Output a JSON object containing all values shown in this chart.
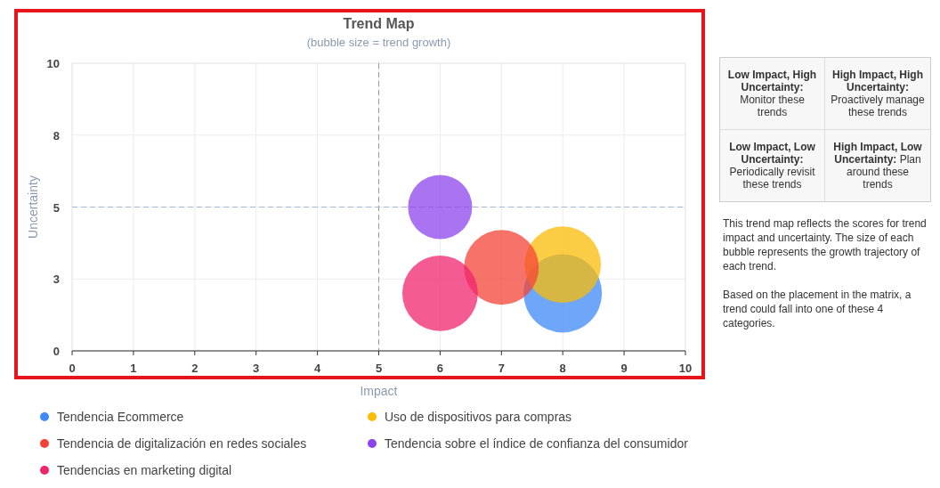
{
  "chart_data": {
    "type": "bubble",
    "title": "Trend Map",
    "subtitle": "(bubble size = trend growth)",
    "xlabel": "Impact",
    "ylabel": "Uncertainty",
    "xlim": [
      0,
      10
    ],
    "xticks": [
      0,
      1,
      2,
      3,
      4,
      5,
      6,
      7,
      8,
      9,
      10
    ],
    "ylim": [
      0,
      10
    ],
    "yticks": [
      0,
      {
        "value": 2.5,
        "label": "3"
      },
      5,
      {
        "value": 7.5,
        "label": "8"
      },
      10
    ],
    "grid": true,
    "legend": "bottom",
    "ref_lines": [
      {
        "axis": "x",
        "value": 5,
        "line_style": "dashed"
      },
      {
        "axis": "y",
        "value": 5,
        "line_style": "dashed"
      }
    ],
    "series": [
      {
        "name": "Tendencia Ecommerce",
        "color": "#3d8af7",
        "x": [
          8
        ],
        "values": [
          2
        ],
        "sizes": [
          1
        ]
      },
      {
        "name": "Uso de dispositivos para compras",
        "color": "#fbbc05",
        "x": [
          8
        ],
        "values": [
          3
        ],
        "sizes": [
          0.95
        ]
      },
      {
        "name": "Tendencia de digitalización en redes sociales",
        "color": "#f44336",
        "x": [
          7
        ],
        "values": [
          2.9
        ],
        "sizes": [
          0.91
        ]
      },
      {
        "name": "Tendencia sobre el índice de confianza del consumidor",
        "color": "#8e44ec",
        "x": [
          6
        ],
        "values": [
          5
        ],
        "sizes": [
          0.67
        ]
      },
      {
        "name": "Tendencias en marketing digital",
        "color": "#f0246e",
        "x": [
          6
        ],
        "values": [
          2
        ],
        "sizes": [
          0.93
        ]
      }
    ],
    "annotations": [
      "Low Impact, High Uncertainty: Monitor these trends",
      "High Impact, High Uncertainty: Proactively manage these trends",
      "Low Impact, Low Uncertainty: Periodically revisit these trends",
      "High Impact, Low Uncertainty: Plan around these trends",
      "This trend map reflects the scores for trend impact and uncertainty. The size of each bubble represents the growth trajectory of each trend.",
      "Based on the placement in the matrix, a trend could fall into one of these 4 categories."
    ]
  }
}
